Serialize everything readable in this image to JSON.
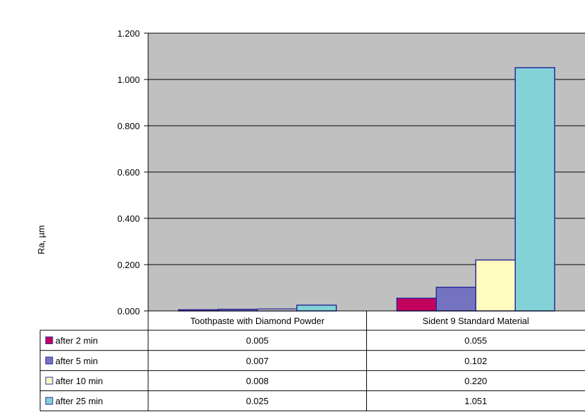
{
  "colors": {
    "plot_bg": "#c0c0c0",
    "series": [
      "#c4005e",
      "#7373c0",
      "#fffcbe",
      "#82d2d7"
    ],
    "bar_stroke": "#2a2a9a"
  },
  "chart_data": {
    "type": "bar",
    "title": "",
    "xlabel": "",
    "ylabel": "Ra, µm",
    "ylim": [
      0,
      1.2
    ],
    "yticks": [
      "0.000",
      "0.200",
      "0.400",
      "0.600",
      "0.800",
      "1.000",
      "1.200"
    ],
    "grid": true,
    "categories": [
      "Toothpaste with Diamond Powder",
      "Sident 9 Standard Material"
    ],
    "series": [
      {
        "name": "after 2 min",
        "values": [
          0.005,
          0.055
        ],
        "labels": [
          "0.005",
          "0.055"
        ]
      },
      {
        "name": "after 5 min",
        "values": [
          0.007,
          0.102
        ],
        "labels": [
          "0.007",
          "0.102"
        ]
      },
      {
        "name": "after 10 min",
        "values": [
          0.008,
          0.22
        ],
        "labels": [
          "0.008",
          "0.220"
        ]
      },
      {
        "name": "after 25 min",
        "values": [
          0.025,
          1.051
        ],
        "labels": [
          "0.025",
          "1.051"
        ]
      }
    ],
    "legend": "data-table-left"
  }
}
